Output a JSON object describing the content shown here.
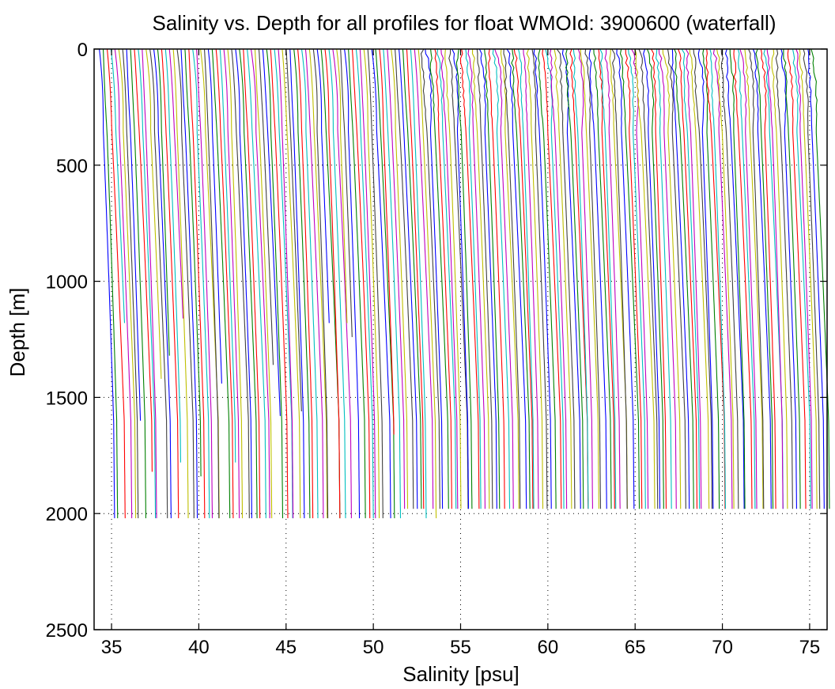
{
  "chart_data": {
    "type": "line",
    "title": "Salinity vs. Depth for all profiles for float WMOId: 3900600 (waterfall)",
    "xlabel": "Salinity [psu]",
    "ylabel": "Depth [m]",
    "xlim": [
      34,
      76
    ],
    "ylim": [
      0,
      2500
    ],
    "y_reversed": true,
    "grid": true,
    "grid_style": "dotted",
    "xticks": [
      35,
      40,
      45,
      50,
      55,
      60,
      65,
      70,
      75
    ],
    "yticks": [
      0,
      500,
      1000,
      1500,
      2000,
      2500
    ],
    "series_colors": [
      "#0000ff",
      "#008000",
      "#ff0000",
      "#00bfbf",
      "#bf00bf",
      "#bfbf00",
      "#404040"
    ],
    "waterfall": {
      "profile_count": 184,
      "first_surface_salinity": 34.3,
      "last_surface_salinity": 75.1,
      "surface_to_deep_shift": 0.9,
      "deep_end_depth_early": 2020,
      "deep_end_depth_late": 1980
    }
  }
}
